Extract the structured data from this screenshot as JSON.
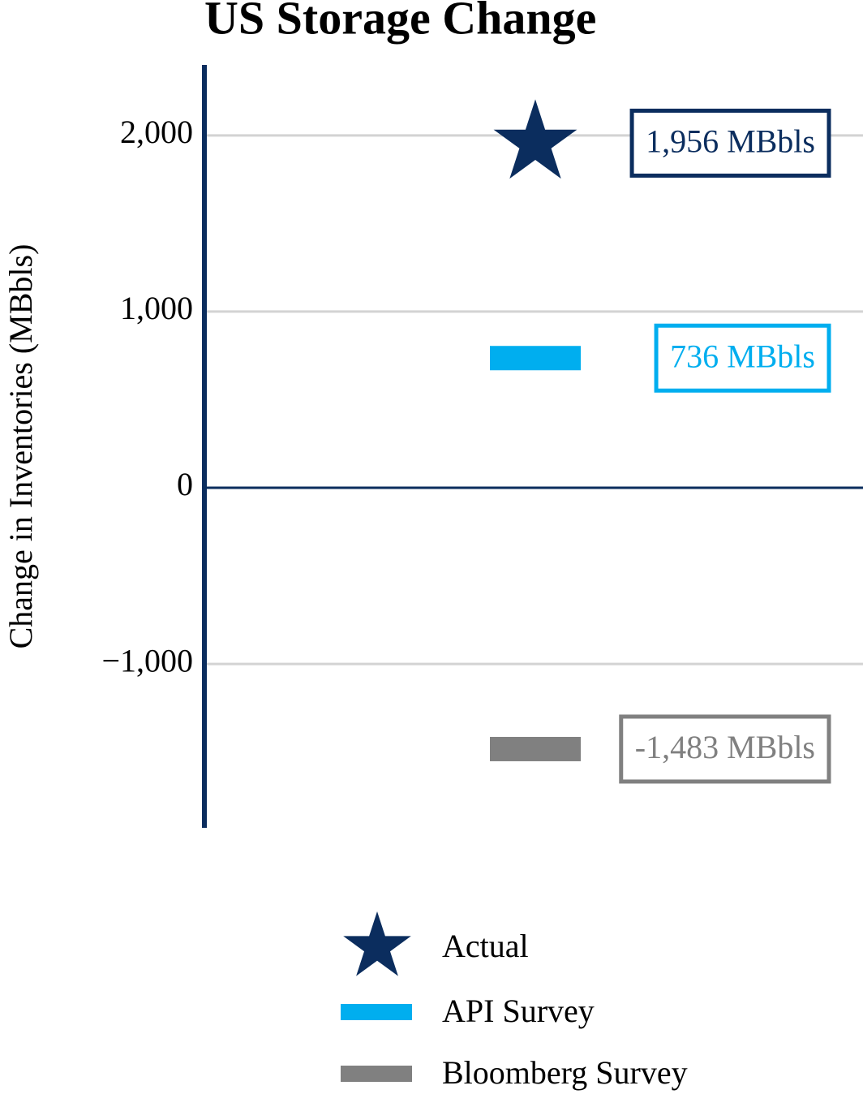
{
  "chart_data": {
    "type": "point",
    "title": "US Storage Change",
    "y_label": "Change in Inventories (MBbls)",
    "categories": [
      null
    ],
    "series": [
      {
        "name": "Actual",
        "color": "#0b2d5e",
        "marker": "star",
        "values": [
          1956
        ],
        "value_labels": [
          "1,956 MBbls"
        ]
      },
      {
        "name": "API Survey",
        "color": "#00aeef",
        "marker": "bar",
        "values": [
          736
        ],
        "value_labels": [
          "736 MBbls"
        ]
      },
      {
        "name": "Bloomberg Survey",
        "color": "#808080",
        "marker": "bar",
        "values": [
          -1483
        ],
        "value_labels": [
          "-1,483 MBbls"
        ]
      }
    ],
    "ylim": [
      -1930,
      2400
    ],
    "yticks": [
      {
        "value": -1000,
        "label": "−1,000"
      },
      0,
      {
        "value": 1000,
        "label": "1,000"
      },
      {
        "value": 2000,
        "label": "2,000"
      }
    ],
    "grid": true,
    "legend": "bottom"
  }
}
